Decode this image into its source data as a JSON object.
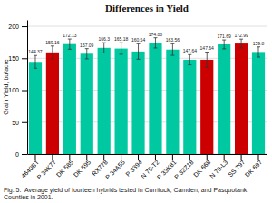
{
  "chart_data": {
    "type": "bar",
    "title": "Differences in Yield",
    "ylabel": "Grain Yield, bu/acre",
    "caption": "Fig. 5.  Average yield of fourteen hybrids tested in Currituck, Camden, and Pasquotank Counties in 2001.",
    "categories": [
      "4640BT",
      "P 34K77",
      "DK 585",
      "DK 595",
      "RX778",
      "P 34A55",
      "P 3394",
      "N 75-T2",
      "P 33K81",
      "P 32Z18",
      "DK 668",
      "N 79-L3",
      "SS 797",
      "DK 697"
    ],
    "values": [
      144.37,
      159.16,
      172.13,
      157.09,
      166.3,
      165.18,
      160.54,
      174.08,
      163.56,
      147.64,
      147.64,
      171.69,
      172.99,
      159.8
    ],
    "errors": [
      10,
      10,
      8,
      8,
      8,
      9,
      12,
      8,
      9,
      8,
      12,
      7,
      7,
      8
    ],
    "colors": [
      "#00c8a0",
      "#cc0000",
      "#00c8a0",
      "#00c8a0",
      "#00c8a0",
      "#00c8a0",
      "#00c8a0",
      "#00c8a0",
      "#00c8a0",
      "#00c8a0",
      "#cc0000",
      "#00c8a0",
      "#cc0000",
      "#00c8a0"
    ],
    "ylim": [
      0,
      210
    ],
    "yticks": [
      0,
      50,
      100,
      150,
      200
    ],
    "grid": true,
    "data_labels": true
  }
}
